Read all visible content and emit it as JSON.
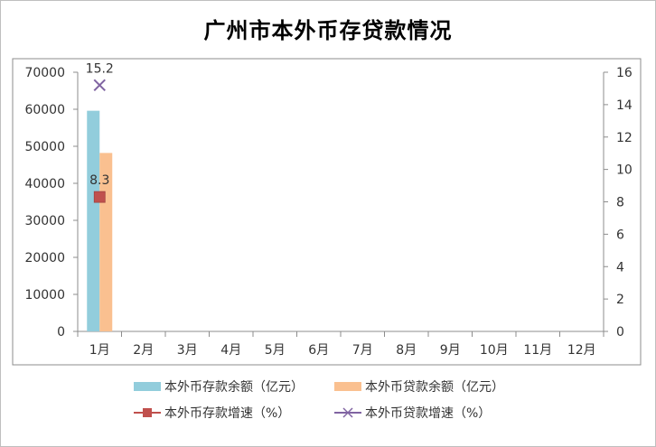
{
  "chart_data": {
    "type": "bar",
    "title": "广州市本外币存贷款情况",
    "categories": [
      "1月",
      "2月",
      "3月",
      "4月",
      "5月",
      "6月",
      "7月",
      "8月",
      "9月",
      "10月",
      "11月",
      "12月"
    ],
    "y_left": {
      "min": 0,
      "max": 70000,
      "step": 10000,
      "ticks": [
        "0",
        "10000",
        "20000",
        "30000",
        "40000",
        "50000",
        "60000",
        "70000"
      ]
    },
    "y_right": {
      "min": 0,
      "max": 16,
      "step": 2,
      "ticks": [
        "0",
        "2",
        "4",
        "6",
        "8",
        "10",
        "12",
        "14",
        "16"
      ]
    },
    "series": [
      {
        "name": "本外币存款余额（亿元）",
        "type": "bar",
        "axis": "left",
        "color": "#92cddc",
        "values": [
          59600,
          null,
          null,
          null,
          null,
          null,
          null,
          null,
          null,
          null,
          null,
          null
        ]
      },
      {
        "name": "本外币贷款余额（亿元）",
        "type": "bar",
        "axis": "left",
        "color": "#fac090",
        "values": [
          48200,
          null,
          null,
          null,
          null,
          null,
          null,
          null,
          null,
          null,
          null,
          null
        ]
      },
      {
        "name": "本外币存款增速（%）",
        "type": "line",
        "axis": "right",
        "color": "#c0504d",
        "marker": "square",
        "values": [
          8.3,
          null,
          null,
          null,
          null,
          null,
          null,
          null,
          null,
          null,
          null,
          null
        ],
        "labels": [
          "8.3"
        ]
      },
      {
        "name": "本外币贷款增速（%）",
        "type": "line",
        "axis": "right",
        "color": "#8064a2",
        "marker": "x",
        "values": [
          15.2,
          null,
          null,
          null,
          null,
          null,
          null,
          null,
          null,
          null,
          null,
          null
        ],
        "labels": [
          "15.2"
        ]
      }
    ],
    "legend_position": "bottom"
  }
}
